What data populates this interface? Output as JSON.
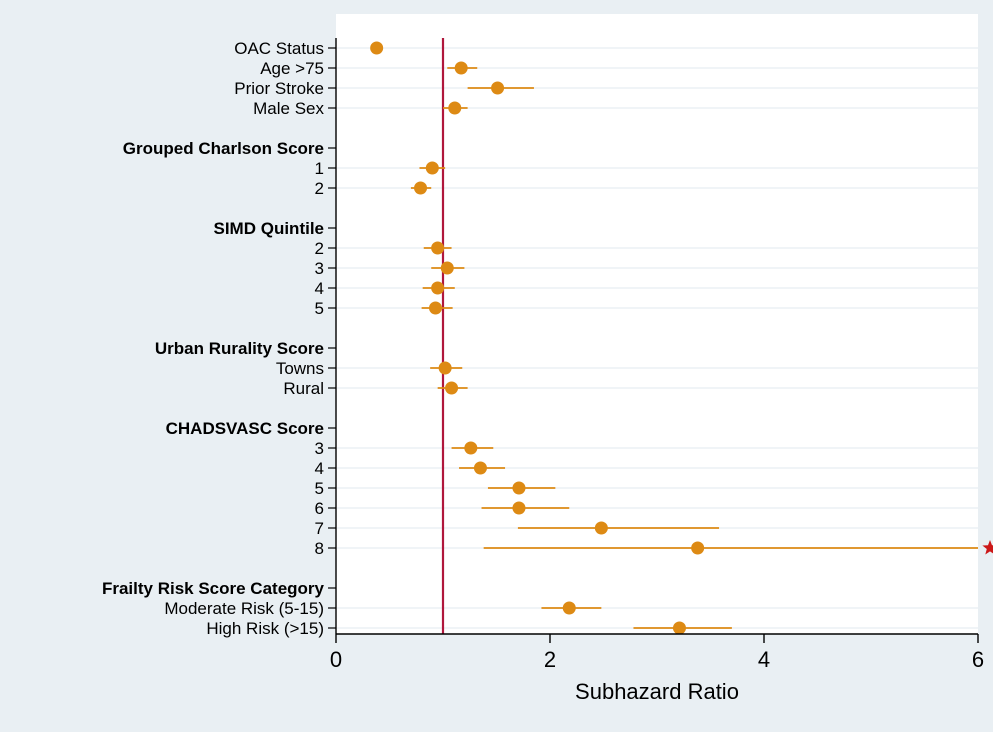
{
  "chart_data": {
    "type": "forest",
    "xlabel": "Subhazard Ratio",
    "ylabel": "",
    "title": "",
    "xlim": [
      0,
      6
    ],
    "xticks": [
      "0",
      "2",
      "4",
      "6"
    ],
    "reference_line": 1,
    "grid": "horizontal",
    "legend": "none",
    "rows": [
      {
        "label": "OAC Status",
        "type": "item",
        "est": 0.38,
        "lo": 0.35,
        "hi": 0.42
      },
      {
        "label": "Age >75",
        "type": "item",
        "est": 1.17,
        "lo": 1.04,
        "hi": 1.32
      },
      {
        "label": "Prior Stroke",
        "type": "item",
        "est": 1.51,
        "lo": 1.23,
        "hi": 1.85
      },
      {
        "label": "Male Sex",
        "type": "item",
        "est": 1.11,
        "lo": 1.0,
        "hi": 1.23
      },
      {
        "label": "",
        "type": "blank"
      },
      {
        "label": "Grouped Charlson Score",
        "type": "group"
      },
      {
        "label": "1",
        "type": "item",
        "est": 0.9,
        "lo": 0.78,
        "hi": 1.02
      },
      {
        "label": "2",
        "type": "item",
        "est": 0.79,
        "lo": 0.7,
        "hi": 0.89
      },
      {
        "label": "",
        "type": "blank"
      },
      {
        "label": "SIMD Quintile",
        "type": "group"
      },
      {
        "label": "2",
        "type": "item",
        "est": 0.95,
        "lo": 0.82,
        "hi": 1.08
      },
      {
        "label": "3",
        "type": "item",
        "est": 1.04,
        "lo": 0.89,
        "hi": 1.2
      },
      {
        "label": "4",
        "type": "item",
        "est": 0.95,
        "lo": 0.81,
        "hi": 1.11
      },
      {
        "label": "5",
        "type": "item",
        "est": 0.93,
        "lo": 0.8,
        "hi": 1.09
      },
      {
        "label": "",
        "type": "blank"
      },
      {
        "label": "Urban Rurality Score",
        "type": "group"
      },
      {
        "label": "Towns",
        "type": "item",
        "est": 1.02,
        "lo": 0.88,
        "hi": 1.18
      },
      {
        "label": "Rural",
        "type": "item",
        "est": 1.08,
        "lo": 0.95,
        "hi": 1.23
      },
      {
        "label": "",
        "type": "blank"
      },
      {
        "label": "CHADSVASC Score",
        "type": "group"
      },
      {
        "label": "3",
        "type": "item",
        "est": 1.26,
        "lo": 1.08,
        "hi": 1.47
      },
      {
        "label": "4",
        "type": "item",
        "est": 1.35,
        "lo": 1.15,
        "hi": 1.58
      },
      {
        "label": "5",
        "type": "item",
        "est": 1.71,
        "lo": 1.42,
        "hi": 2.05
      },
      {
        "label": "6",
        "type": "item",
        "est": 1.71,
        "lo": 1.36,
        "hi": 2.18
      },
      {
        "label": "7",
        "type": "item",
        "est": 2.48,
        "lo": 1.7,
        "hi": 3.58
      },
      {
        "label": "8",
        "type": "item",
        "est": 3.38,
        "lo": 1.38,
        "hi": 8.3,
        "truncated": true
      },
      {
        "label": "",
        "type": "blank"
      },
      {
        "label": "Frailty Risk Score Category",
        "type": "group"
      },
      {
        "label": "Moderate Risk (5-15)",
        "type": "item",
        "est": 2.18,
        "lo": 1.92,
        "hi": 2.48
      },
      {
        "label": "High Risk (>15)",
        "type": "item",
        "est": 3.21,
        "lo": 2.78,
        "hi": 3.7
      }
    ],
    "colors": {
      "outer_background": "#e9eff3",
      "plot_background": "#ffffff",
      "gridline": "#e8eef2",
      "marker": "#dd8a14",
      "reference_line": "#b0173c",
      "truncation_marker": "#cc1818",
      "axis": "#000000"
    }
  }
}
